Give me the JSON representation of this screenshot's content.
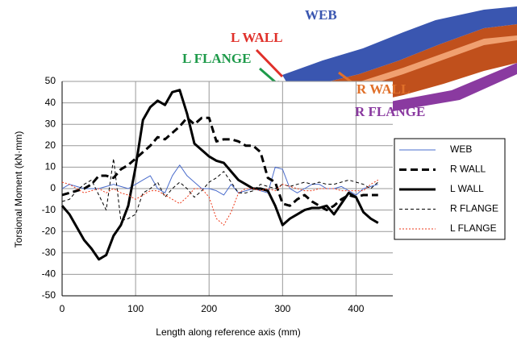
{
  "chart_data": {
    "type": "line",
    "ylabel": "Torsional Moment  (kN·mm)",
    "xlabel": "Length along reference axis (mm)",
    "annotations": [
      {
        "text": "WEB",
        "color": "#3a56b0"
      },
      {
        "text": "L WALL",
        "color": "#e0302a"
      },
      {
        "text": "L FLANGE",
        "color": "#1e9a4a"
      },
      {
        "text": "R WALL",
        "color": "#e0702a"
      },
      {
        "text": "R FLANGE",
        "color": "#8a3aa0"
      }
    ],
    "xlim": [
      0,
      450
    ],
    "ylim": [
      -50,
      50
    ],
    "xticks": [
      0,
      100,
      200,
      300,
      400
    ],
    "yticks": [
      -50,
      -40,
      -30,
      -20,
      -10,
      0,
      10,
      20,
      30,
      40,
      50
    ],
    "grid": true,
    "x": [
      0,
      10,
      20,
      30,
      40,
      50,
      60,
      70,
      80,
      90,
      100,
      110,
      120,
      130,
      140,
      150,
      160,
      170,
      180,
      190,
      200,
      210,
      220,
      230,
      240,
      250,
      260,
      270,
      280,
      290,
      300,
      310,
      320,
      330,
      340,
      350,
      360,
      370,
      380,
      390,
      400,
      410,
      420,
      430
    ],
    "series": [
      {
        "name": "WEB",
        "color": "#4a6ccc",
        "line_style": "solid",
        "line_width": 1,
        "values": [
          0,
          2,
          1,
          0,
          0,
          0,
          1,
          2,
          1,
          0,
          2,
          4,
          6,
          0,
          -2,
          6,
          11,
          6,
          3,
          0,
          0,
          -1,
          -3,
          2,
          -2,
          -1,
          0,
          -1,
          -2,
          10,
          9,
          0,
          -2,
          0,
          2,
          2,
          0,
          0,
          1,
          -1,
          -3,
          0,
          1,
          2
        ]
      },
      {
        "name": "R WALL",
        "color": "#000000",
        "line_style": "dashed",
        "line_width": 3,
        "values": [
          -3,
          -2,
          -1,
          0,
          2,
          6,
          6,
          5,
          9,
          11,
          14,
          17,
          20,
          24,
          23,
          26,
          29,
          33,
          30,
          33,
          33,
          22,
          23,
          23,
          22,
          20,
          20,
          17,
          5,
          3,
          -7,
          -8,
          -5,
          -3,
          -6,
          -8,
          -10,
          -8,
          -5,
          -3,
          -4,
          -3,
          -3,
          -3
        ]
      },
      {
        "name": "L WALL",
        "color": "#000000",
        "line_style": "solid",
        "line_width": 3,
        "values": [
          -8,
          -12,
          -18,
          -24,
          -28,
          -33,
          -31,
          -22,
          -17,
          -8,
          10,
          32,
          38,
          41,
          39,
          45,
          46,
          35,
          21,
          18,
          15,
          13,
          12,
          8,
          4,
          2,
          0,
          0,
          -1,
          -8,
          -17,
          -14,
          -12,
          -10,
          -9,
          -9,
          -8,
          -12,
          -7,
          -2,
          -4,
          -11,
          -14,
          -16
        ]
      },
      {
        "name": "R FLANGE",
        "color": "#000000",
        "line_style": "dashed",
        "line_width": 1,
        "values": [
          -6,
          -5,
          -1,
          2,
          4,
          -3,
          -10,
          14,
          -15,
          -14,
          -12,
          -2,
          0,
          3,
          -4,
          0,
          3,
          0,
          -4,
          -1,
          3,
          5,
          8,
          3,
          -2,
          -2,
          -1,
          2,
          1,
          0,
          2,
          1,
          2,
          3,
          2,
          3,
          2,
          2,
          3,
          4,
          3,
          2,
          0,
          3
        ]
      },
      {
        "name": "L FLANGE",
        "color": "#ee3a1a",
        "line_style": "dotted",
        "line_width": 1,
        "values": [
          3,
          2,
          0,
          -2,
          -1,
          0,
          -2,
          0,
          -2,
          -3,
          -5,
          -3,
          -1,
          -1,
          -3,
          -5,
          -7,
          -4,
          0,
          0,
          -4,
          -14,
          -17,
          -11,
          -2,
          0,
          0,
          -1,
          0,
          -1,
          2,
          1,
          0,
          -1,
          -1,
          0,
          0,
          0,
          -1,
          -1,
          -1,
          -1,
          2,
          4
        ]
      }
    ]
  }
}
